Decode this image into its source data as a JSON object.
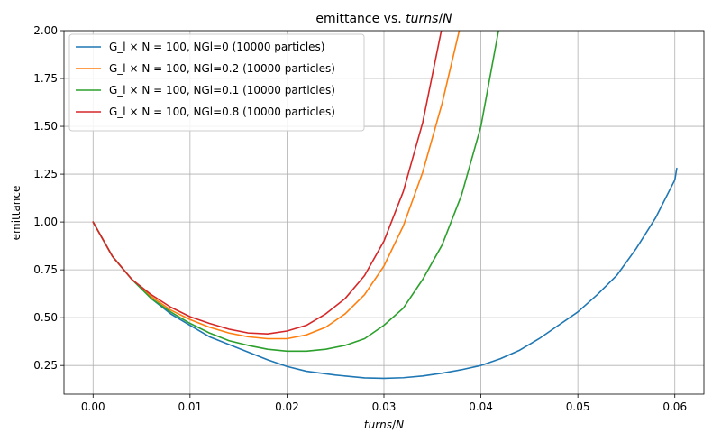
{
  "chart_data": {
    "type": "line",
    "title": "emittance vs. turns/N",
    "xlabel": "turns/N",
    "ylabel": "emittance",
    "xlim": [
      -0.003,
      0.063
    ],
    "ylim": [
      0.1,
      2.0
    ],
    "xticks": [
      0.0,
      0.01,
      0.02,
      0.03,
      0.04,
      0.05,
      0.06
    ],
    "xtick_labels": [
      "0.00",
      "0.01",
      "0.02",
      "0.03",
      "0.04",
      "0.05",
      "0.06"
    ],
    "yticks": [
      0.25,
      0.5,
      0.75,
      1.0,
      1.25,
      1.5,
      1.75,
      2.0
    ],
    "ytick_labels": [
      "0.25",
      "0.50",
      "0.75",
      "1.00",
      "1.25",
      "1.50",
      "1.75",
      "2.00"
    ],
    "grid": true,
    "legend_position": "top-left",
    "series": [
      {
        "name": "G_l × N = 100, NGl=0 (10000 particles)",
        "color": "#1f77b4",
        "points": [
          [
            0.0,
            1.0
          ],
          [
            0.002,
            0.82
          ],
          [
            0.004,
            0.7
          ],
          [
            0.006,
            0.6
          ],
          [
            0.008,
            0.52
          ],
          [
            0.01,
            0.46
          ],
          [
            0.012,
            0.4
          ],
          [
            0.014,
            0.36
          ],
          [
            0.016,
            0.32
          ],
          [
            0.018,
            0.28
          ],
          [
            0.02,
            0.245
          ],
          [
            0.022,
            0.22
          ],
          [
            0.025,
            0.2
          ],
          [
            0.028,
            0.185
          ],
          [
            0.03,
            0.183
          ],
          [
            0.032,
            0.186
          ],
          [
            0.034,
            0.195
          ],
          [
            0.036,
            0.21
          ],
          [
            0.038,
            0.228
          ],
          [
            0.04,
            0.25
          ],
          [
            0.042,
            0.285
          ],
          [
            0.044,
            0.33
          ],
          [
            0.046,
            0.39
          ],
          [
            0.048,
            0.46
          ],
          [
            0.05,
            0.53
          ],
          [
            0.052,
            0.62
          ],
          [
            0.054,
            0.72
          ],
          [
            0.056,
            0.86
          ],
          [
            0.058,
            1.02
          ],
          [
            0.06,
            1.22
          ],
          [
            0.0602,
            1.28
          ]
        ]
      },
      {
        "name": "G_l × N = 100, NGl=0.2 (10000 particles)",
        "color": "#ff7f0e",
        "points": [
          [
            0.0,
            1.0
          ],
          [
            0.002,
            0.82
          ],
          [
            0.004,
            0.7
          ],
          [
            0.006,
            0.61
          ],
          [
            0.008,
            0.54
          ],
          [
            0.01,
            0.49
          ],
          [
            0.012,
            0.45
          ],
          [
            0.014,
            0.42
          ],
          [
            0.016,
            0.4
          ],
          [
            0.018,
            0.39
          ],
          [
            0.02,
            0.39
          ],
          [
            0.022,
            0.41
          ],
          [
            0.024,
            0.45
          ],
          [
            0.026,
            0.52
          ],
          [
            0.028,
            0.62
          ],
          [
            0.03,
            0.77
          ],
          [
            0.032,
            0.98
          ],
          [
            0.034,
            1.26
          ],
          [
            0.036,
            1.62
          ],
          [
            0.038,
            2.05
          ]
        ]
      },
      {
        "name": "G_l × N = 100, NGl=0.1 (10000 particles)",
        "color": "#2ca02c",
        "points": [
          [
            0.0,
            1.0
          ],
          [
            0.002,
            0.82
          ],
          [
            0.004,
            0.7
          ],
          [
            0.006,
            0.6
          ],
          [
            0.008,
            0.53
          ],
          [
            0.01,
            0.47
          ],
          [
            0.012,
            0.42
          ],
          [
            0.014,
            0.38
          ],
          [
            0.016,
            0.355
          ],
          [
            0.018,
            0.335
          ],
          [
            0.02,
            0.325
          ],
          [
            0.022,
            0.325
          ],
          [
            0.024,
            0.335
          ],
          [
            0.026,
            0.355
          ],
          [
            0.028,
            0.39
          ],
          [
            0.03,
            0.46
          ],
          [
            0.032,
            0.55
          ],
          [
            0.034,
            0.7
          ],
          [
            0.036,
            0.88
          ],
          [
            0.038,
            1.14
          ],
          [
            0.04,
            1.5
          ],
          [
            0.042,
            2.05
          ]
        ]
      },
      {
        "name": "G_l × N = 100, NGl=0.8 (10000 particles)",
        "color": "#d62728",
        "points": [
          [
            0.0,
            1.0
          ],
          [
            0.002,
            0.82
          ],
          [
            0.004,
            0.7
          ],
          [
            0.006,
            0.62
          ],
          [
            0.008,
            0.555
          ],
          [
            0.01,
            0.505
          ],
          [
            0.012,
            0.47
          ],
          [
            0.014,
            0.44
          ],
          [
            0.016,
            0.42
          ],
          [
            0.018,
            0.415
          ],
          [
            0.02,
            0.43
          ],
          [
            0.022,
            0.46
          ],
          [
            0.024,
            0.52
          ],
          [
            0.026,
            0.6
          ],
          [
            0.028,
            0.72
          ],
          [
            0.03,
            0.9
          ],
          [
            0.032,
            1.16
          ],
          [
            0.034,
            1.52
          ],
          [
            0.036,
            2.02
          ]
        ]
      }
    ]
  }
}
